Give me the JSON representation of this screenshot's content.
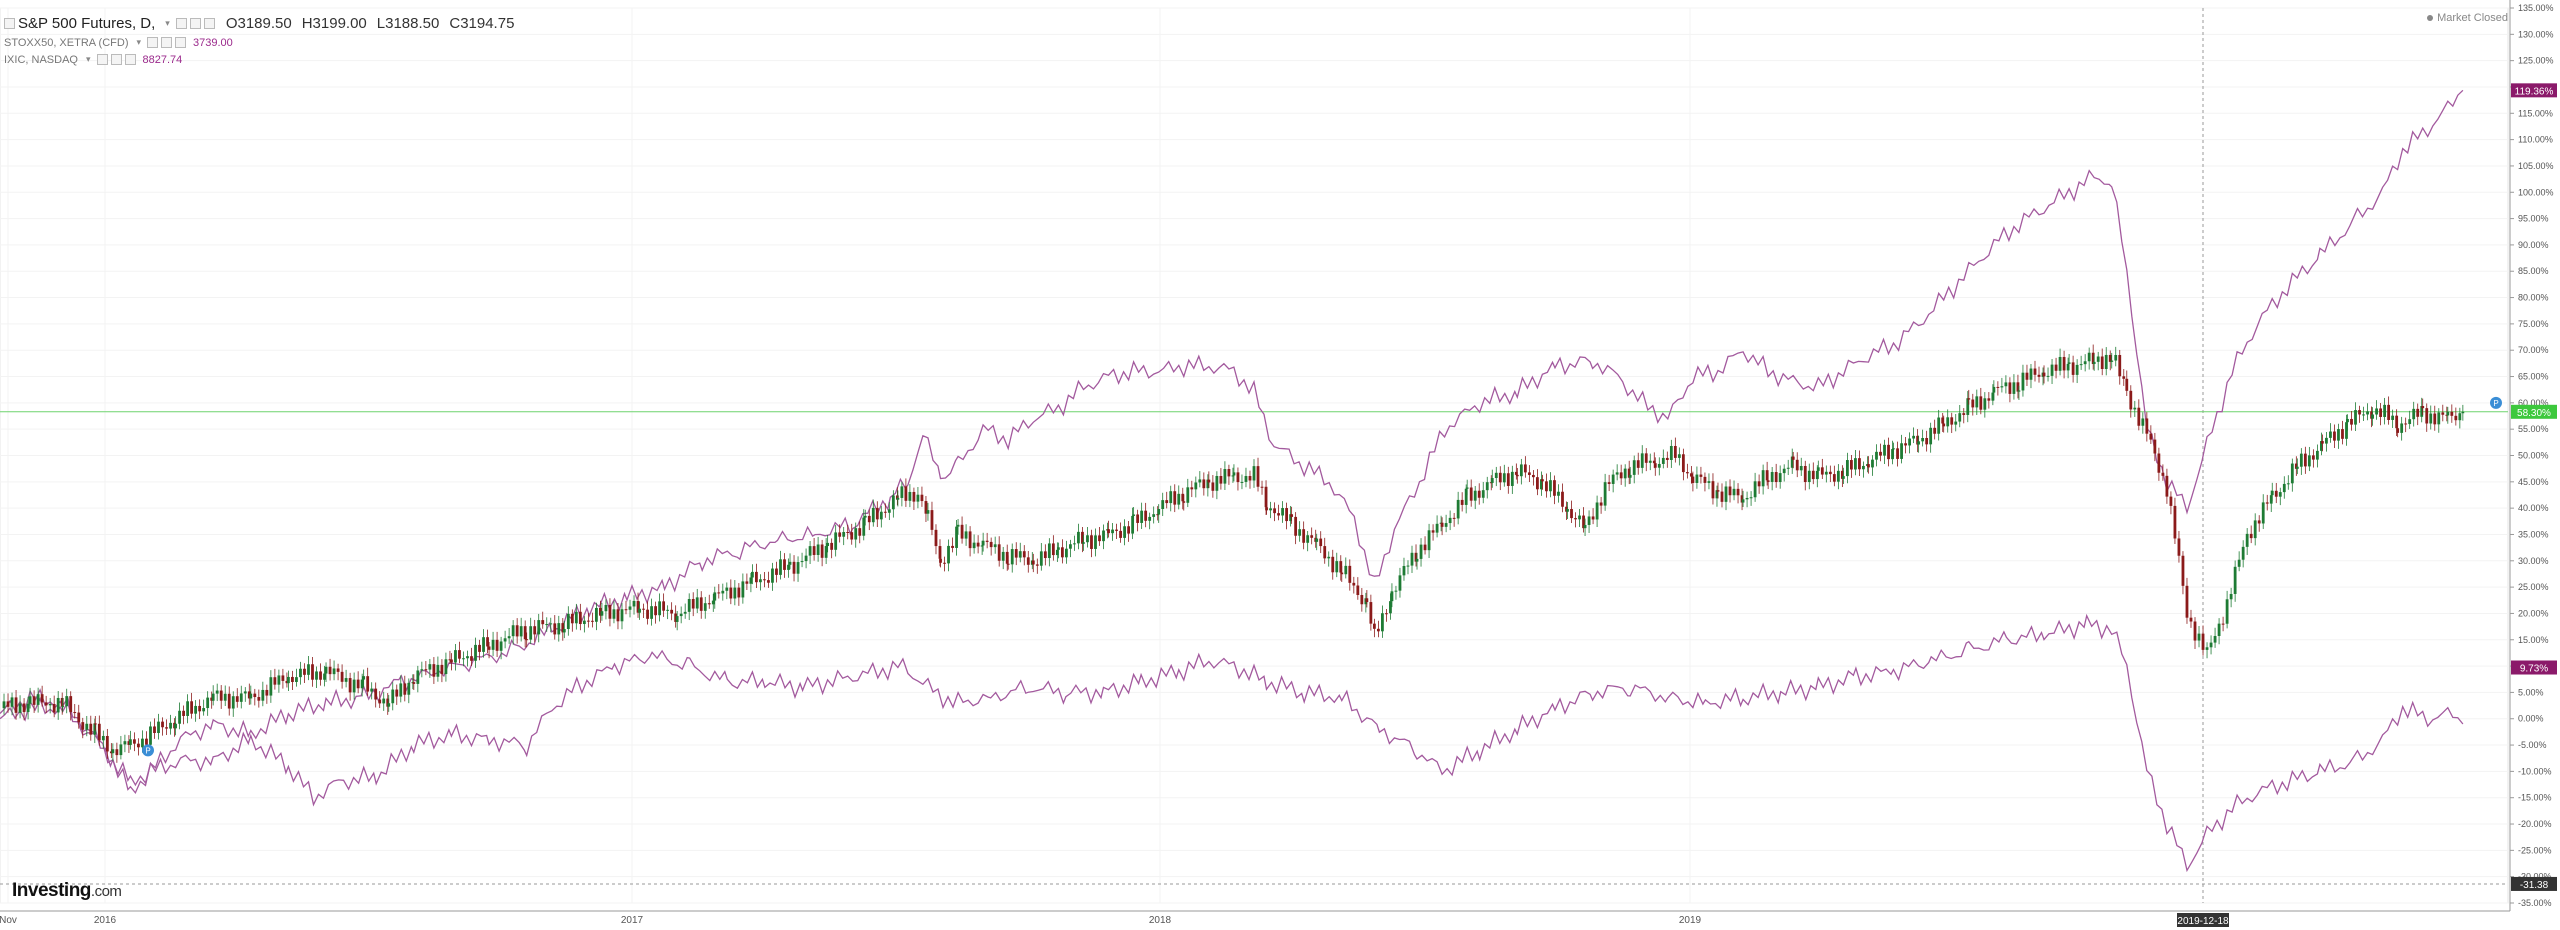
{
  "legend": {
    "main": {
      "symbol": "S&P 500 Futures, D,",
      "open": "O3189.50",
      "high": "H3199.00",
      "low": "L3188.50",
      "close": "C3194.75"
    },
    "rows": [
      {
        "symbol": "STOXX50, XETRA (CFD)",
        "value": "3739.00"
      },
      {
        "symbol": "IXIC, NASDAQ",
        "value": "8827.74"
      }
    ]
  },
  "market_status": "Market Closed",
  "logo": {
    "brand": "Investing",
    "suffix": ".com"
  },
  "colors": {
    "candle_up": "#1e7b34",
    "candle_down": "#8b1a1a",
    "compare_line": "#a35a9e",
    "hline": "#6fd36f",
    "label_green": "#3dc83d",
    "label_purple": "#8b1a6a",
    "label_dark": "#333333"
  },
  "chart_data": {
    "type": "line",
    "y_unit": "%",
    "ylim": [
      -35,
      135
    ],
    "y_ticks": [
      135,
      130,
      125,
      120,
      115,
      110,
      105,
      100,
      95,
      90,
      85,
      80,
      75,
      70,
      65,
      60,
      55,
      50,
      45,
      40,
      35,
      30,
      25,
      20,
      15,
      10,
      5,
      0,
      -5,
      -10,
      -15,
      -20,
      -25,
      -30,
      -35
    ],
    "x_labels": [
      {
        "label": "Nov",
        "x": "2015-11"
      },
      {
        "label": "2016",
        "x": "2016-01"
      },
      {
        "label": "2017",
        "x": "2017-01"
      },
      {
        "label": "2018",
        "x": "2018-01"
      },
      {
        "label": "2019",
        "x": "2019-01"
      }
    ],
    "crosshair_date": "2019-12-18",
    "grid": true,
    "horizontal_line": 58.3,
    "series": [
      {
        "kind": "candles",
        "last_label": "58.30%",
        "points": [
          [
            0,
            2
          ],
          [
            12,
            3
          ],
          [
            25,
            3
          ],
          [
            38,
            -3
          ],
          [
            45,
            -6
          ],
          [
            52,
            -5
          ],
          [
            60,
            -3
          ],
          [
            70,
            0
          ],
          [
            85,
            4
          ],
          [
            100,
            4
          ],
          [
            115,
            8
          ],
          [
            130,
            9
          ],
          [
            145,
            6
          ],
          [
            155,
            3
          ],
          [
            165,
            8
          ],
          [
            180,
            11
          ],
          [
            195,
            14
          ],
          [
            210,
            17
          ],
          [
            225,
            18
          ],
          [
            240,
            20
          ],
          [
            255,
            21
          ],
          [
            270,
            20
          ],
          [
            285,
            23
          ],
          [
            300,
            26
          ],
          [
            315,
            29
          ],
          [
            330,
            33
          ],
          [
            345,
            37
          ],
          [
            358,
            42
          ],
          [
            366,
            43
          ],
          [
            370,
            38
          ],
          [
            375,
            30
          ],
          [
            382,
            35
          ],
          [
            392,
            33
          ],
          [
            402,
            31
          ],
          [
            412,
            30
          ],
          [
            422,
            32
          ],
          [
            432,
            34
          ],
          [
            442,
            35
          ],
          [
            452,
            37
          ],
          [
            462,
            40
          ],
          [
            472,
            43
          ],
          [
            482,
            45
          ],
          [
            492,
            46
          ],
          [
            500,
            46
          ],
          [
            505,
            41
          ],
          [
            515,
            37
          ],
          [
            525,
            33
          ],
          [
            535,
            28
          ],
          [
            545,
            22
          ],
          [
            548,
            15
          ],
          [
            555,
            24
          ],
          [
            565,
            32
          ],
          [
            575,
            37
          ],
          [
            585,
            42
          ],
          [
            595,
            45
          ],
          [
            605,
            47
          ],
          [
            615,
            45
          ],
          [
            625,
            40
          ],
          [
            632,
            36
          ],
          [
            640,
            44
          ],
          [
            650,
            48
          ],
          [
            660,
            49
          ],
          [
            668,
            50
          ],
          [
            675,
            46
          ],
          [
            685,
            43
          ],
          [
            695,
            42
          ],
          [
            705,
            46
          ],
          [
            715,
            48
          ],
          [
            725,
            46
          ],
          [
            735,
            47
          ],
          [
            745,
            49
          ],
          [
            755,
            51
          ],
          [
            765,
            53
          ],
          [
            775,
            56
          ],
          [
            785,
            59
          ],
          [
            795,
            62
          ],
          [
            805,
            64
          ],
          [
            815,
            66
          ],
          [
            825,
            67
          ],
          [
            835,
            68
          ],
          [
            842,
            69
          ],
          [
            848,
            62
          ],
          [
            856,
            54
          ],
          [
            864,
            44
          ],
          [
            872,
            20
          ],
          [
            880,
            12
          ],
          [
            888,
            22
          ],
          [
            896,
            35
          ],
          [
            906,
            42
          ],
          [
            916,
            48
          ],
          [
            926,
            52
          ],
          [
            936,
            56
          ],
          [
            946,
            59
          ],
          [
            956,
            56
          ],
          [
            966,
            58
          ],
          [
            976,
            57
          ],
          [
            982,
            58.3
          ]
        ]
      },
      {
        "kind": "line",
        "points": [
          [
            0,
            1
          ],
          [
            12,
            4
          ],
          [
            25,
            3
          ],
          [
            35,
            -2
          ],
          [
            45,
            -8
          ],
          [
            52,
            -12
          ],
          [
            60,
            -10
          ],
          [
            72,
            -8
          ],
          [
            85,
            -8
          ],
          [
            100,
            -4
          ],
          [
            115,
            -9
          ],
          [
            125,
            -15
          ],
          [
            135,
            -12
          ],
          [
            150,
            -11
          ],
          [
            165,
            -5
          ],
          [
            180,
            -3
          ],
          [
            195,
            -4
          ],
          [
            210,
            -5
          ],
          [
            220,
            2
          ],
          [
            230,
            6
          ],
          [
            245,
            10
          ],
          [
            260,
            12
          ],
          [
            275,
            10
          ],
          [
            290,
            7
          ],
          [
            305,
            7
          ],
          [
            320,
            6
          ],
          [
            340,
            8
          ],
          [
            360,
            10
          ],
          [
            370,
            6
          ],
          [
            380,
            3
          ],
          [
            395,
            4
          ],
          [
            410,
            6
          ],
          [
            425,
            5
          ],
          [
            440,
            5
          ],
          [
            455,
            7
          ],
          [
            470,
            9
          ],
          [
            482,
            11
          ],
          [
            492,
            10
          ],
          [
            505,
            7
          ],
          [
            520,
            5
          ],
          [
            535,
            4
          ],
          [
            550,
            -2
          ],
          [
            565,
            -6
          ],
          [
            575,
            -10
          ],
          [
            590,
            -6
          ],
          [
            605,
            -2
          ],
          [
            620,
            2
          ],
          [
            635,
            5
          ],
          [
            650,
            6
          ],
          [
            665,
            4
          ],
          [
            680,
            3
          ],
          [
            695,
            4
          ],
          [
            710,
            5
          ],
          [
            725,
            6
          ],
          [
            740,
            8
          ],
          [
            755,
            9
          ],
          [
            770,
            11
          ],
          [
            785,
            13
          ],
          [
            800,
            15
          ],
          [
            815,
            16
          ],
          [
            832,
            18
          ],
          [
            842,
            17
          ],
          [
            848,
            10
          ],
          [
            856,
            -10
          ],
          [
            864,
            -20
          ],
          [
            872,
            -28
          ],
          [
            880,
            -22
          ],
          [
            890,
            -17
          ],
          [
            900,
            -14
          ],
          [
            912,
            -12
          ],
          [
            925,
            -10
          ],
          [
            940,
            -8
          ],
          [
            950,
            -4
          ],
          [
            958,
            2
          ],
          [
            968,
            0
          ],
          [
            978,
            1
          ],
          [
            982,
            -1
          ]
        ]
      },
      {
        "kind": "line",
        "last_label": "119.36%",
        "points": [
          [
            0,
            0
          ],
          [
            12,
            2
          ],
          [
            25,
            2
          ],
          [
            38,
            -4
          ],
          [
            45,
            -8
          ],
          [
            52,
            -14
          ],
          [
            60,
            -10
          ],
          [
            72,
            -4
          ],
          [
            85,
            -1
          ],
          [
            100,
            -3
          ],
          [
            115,
            1
          ],
          [
            130,
            3
          ],
          [
            145,
            4
          ],
          [
            160,
            7
          ],
          [
            175,
            9
          ],
          [
            190,
            11
          ],
          [
            205,
            13
          ],
          [
            220,
            17
          ],
          [
            235,
            21
          ],
          [
            250,
            23
          ],
          [
            265,
            25
          ],
          [
            280,
            30
          ],
          [
            295,
            32
          ],
          [
            310,
            34
          ],
          [
            325,
            35
          ],
          [
            340,
            37
          ],
          [
            355,
            42
          ],
          [
            362,
            45
          ],
          [
            368,
            54
          ],
          [
            375,
            46
          ],
          [
            382,
            48
          ],
          [
            392,
            55
          ],
          [
            402,
            53
          ],
          [
            412,
            57
          ],
          [
            422,
            59
          ],
          [
            432,
            63
          ],
          [
            442,
            65
          ],
          [
            452,
            66
          ],
          [
            462,
            66
          ],
          [
            472,
            67
          ],
          [
            482,
            67
          ],
          [
            492,
            66
          ],
          [
            500,
            62
          ],
          [
            508,
            52
          ],
          [
            520,
            48
          ],
          [
            530,
            45
          ],
          [
            540,
            38
          ],
          [
            548,
            25
          ],
          [
            556,
            36
          ],
          [
            566,
            45
          ],
          [
            576,
            55
          ],
          [
            590,
            60
          ],
          [
            605,
            62
          ],
          [
            620,
            67
          ],
          [
            635,
            68
          ],
          [
            645,
            65
          ],
          [
            655,
            60
          ],
          [
            665,
            57
          ],
          [
            675,
            65
          ],
          [
            685,
            66
          ],
          [
            695,
            70
          ],
          [
            705,
            66
          ],
          [
            715,
            64
          ],
          [
            725,
            63
          ],
          [
            735,
            66
          ],
          [
            745,
            69
          ],
          [
            755,
            71
          ],
          [
            765,
            75
          ],
          [
            775,
            80
          ],
          [
            785,
            85
          ],
          [
            795,
            90
          ],
          [
            805,
            94
          ],
          [
            815,
            97
          ],
          [
            825,
            100
          ],
          [
            835,
            103
          ],
          [
            842,
            102
          ],
          [
            848,
            85
          ],
          [
            856,
            55
          ],
          [
            864,
            45
          ],
          [
            872,
            40
          ],
          [
            880,
            52
          ],
          [
            890,
            66
          ],
          [
            900,
            75
          ],
          [
            912,
            82
          ],
          [
            925,
            88
          ],
          [
            940,
            95
          ],
          [
            950,
            100
          ],
          [
            958,
            108
          ],
          [
            968,
            112
          ],
          [
            976,
            116
          ],
          [
            982,
            119.36
          ]
        ]
      }
    ],
    "labels": [
      {
        "text": "58.30%",
        "value": 58.3,
        "style": "green"
      },
      {
        "text": "9.73%",
        "value": 9.73,
        "style": "purple"
      },
      {
        "text": "119.36%",
        "value": 119.36,
        "style": "purple"
      },
      {
        "text": "-31.38",
        "value": -31.38,
        "style": "dark"
      }
    ]
  }
}
